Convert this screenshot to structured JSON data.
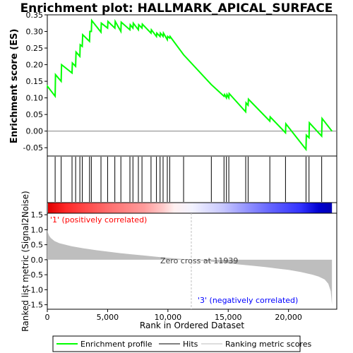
{
  "title": "Enrichment plot: HALLMARK_APICAL_SURFACE",
  "chart_data": [
    {
      "type": "line",
      "panel": "enrichment",
      "ylabel": "Enrichment score (ES)",
      "ylim": [
        -0.075,
        0.35
      ],
      "yticks": [
        -0.05,
        0.0,
        0.05,
        0.1,
        0.15,
        0.2,
        0.25,
        0.3,
        0.35
      ],
      "ytick_labels": [
        "-0.05",
        "0.00",
        "0.05",
        "0.10",
        "0.15",
        "0.20",
        "0.25",
        "0.30",
        "0.35"
      ],
      "xlim": [
        0,
        24000
      ],
      "series": [
        {
          "name": "Enrichment profile",
          "color": "#00ff00",
          "x": [
            0,
            10,
            650,
            680,
            1150,
            1180,
            2050,
            2080,
            2350,
            2380,
            2700,
            2730,
            2900,
            2930,
            3500,
            3530,
            3650,
            3680,
            4450,
            4480,
            5000,
            5030,
            5600,
            5630,
            6100,
            6130,
            6850,
            6880,
            7100,
            7130,
            7550,
            7580,
            7850,
            7880,
            8600,
            8630,
            9050,
            9080,
            9350,
            9380,
            9600,
            9630,
            9950,
            9980,
            10150,
            10180,
            11300,
            13600,
            14650,
            14700,
            14850,
            14900,
            15050,
            15080,
            16450,
            16480,
            16650,
            16680,
            18450,
            18480,
            19750,
            19780,
            21450,
            21480,
            21700,
            21730,
            22750,
            22780,
            23600
          ],
          "y": [
            0.13,
            0.135,
            0.105,
            0.17,
            0.15,
            0.2,
            0.175,
            0.205,
            0.195,
            0.238,
            0.225,
            0.26,
            0.255,
            0.29,
            0.27,
            0.3,
            0.3,
            0.333,
            0.298,
            0.325,
            0.31,
            0.33,
            0.31,
            0.33,
            0.3,
            0.328,
            0.305,
            0.32,
            0.31,
            0.325,
            0.305,
            0.32,
            0.31,
            0.322,
            0.295,
            0.305,
            0.285,
            0.295,
            0.285,
            0.295,
            0.285,
            0.295,
            0.275,
            0.285,
            0.28,
            0.285,
            0.23,
            0.14,
            0.105,
            0.11,
            0.1,
            0.11,
            0.1,
            0.113,
            0.058,
            0.085,
            0.078,
            0.096,
            0.03,
            0.043,
            -0.005,
            0.022,
            -0.055,
            -0.012,
            -0.02,
            0.025,
            -0.015,
            0.038,
            0.0
          ]
        }
      ]
    },
    {
      "type": "hits",
      "panel": "hits",
      "series_name": "Hits",
      "x": [
        650,
        1150,
        2050,
        2350,
        2700,
        2900,
        3500,
        3650,
        4450,
        5000,
        5600,
        6100,
        6850,
        7100,
        7550,
        7850,
        8600,
        9050,
        9350,
        9600,
        9950,
        10150,
        11300,
        13600,
        14650,
        14850,
        15050,
        16450,
        16650,
        18450,
        19750,
        21450,
        21700,
        22750
      ]
    },
    {
      "type": "area",
      "panel": "ranked-metric",
      "ylabel": "Ranked list metric (Signal2Noise)",
      "xlabel": "Rank in Ordered Dataset",
      "series_name": "Ranking metric scores",
      "color": "#bebebe",
      "ylim": [
        -1.65,
        1.55
      ],
      "yticks": [
        -1.5,
        -1.0,
        -0.5,
        0.0,
        0.5,
        1.0,
        1.5
      ],
      "ytick_labels": [
        "-1.5",
        "-1.0",
        "-0.5",
        "0.0",
        "0.5",
        "1.0",
        "1.5"
      ],
      "xlim": [
        0,
        24000
      ],
      "xticks": [
        0,
        5000,
        10000,
        15000,
        20000
      ],
      "xtick_labels": [
        "0",
        "5,000",
        "10,000",
        "15,000",
        "20,000"
      ],
      "x": [
        0,
        50,
        150,
        300,
        600,
        1000,
        2000,
        3000,
        4000,
        5000,
        6000,
        7000,
        8000,
        9000,
        10000,
        11000,
        11939,
        13000,
        14000,
        15000,
        16000,
        17000,
        18000,
        19000,
        20000,
        21000,
        22000,
        22500,
        23000,
        23300,
        23500,
        23600
      ],
      "y": [
        1.0,
        0.9,
        0.8,
        0.72,
        0.62,
        0.55,
        0.45,
        0.38,
        0.32,
        0.27,
        0.22,
        0.18,
        0.14,
        0.1,
        0.06,
        0.03,
        0.0,
        -0.04,
        -0.08,
        -0.12,
        -0.16,
        -0.2,
        -0.24,
        -0.29,
        -0.34,
        -0.41,
        -0.5,
        -0.56,
        -0.66,
        -0.8,
        -1.05,
        -1.5
      ]
    }
  ],
  "annotations": {
    "positive_label": "'1' (positively correlated)",
    "positive_color": "#ff0000",
    "negative_label": "'3' (negatively correlated)",
    "negative_color": "#0000ff",
    "zero_cross_label": "Zero cross at 11939",
    "zero_cross_rank": 11939
  },
  "legend": {
    "placement": "bottom",
    "items": [
      {
        "label": "Enrichment profile",
        "color": "#00ff00"
      },
      {
        "label": "Hits",
        "color": "#000000"
      },
      {
        "label": "Ranking metric scores",
        "color": "#bebebe"
      }
    ]
  },
  "colorbar": {
    "stops": [
      {
        "rank": 0,
        "color": "#e00000"
      },
      {
        "rank": 1500,
        "color": "#ff2828"
      },
      {
        "rank": 5000,
        "color": "#ff6e6e"
      },
      {
        "rank": 8000,
        "color": "#ff9c9c"
      },
      {
        "rank": 9500,
        "color": "#ffc8c8"
      },
      {
        "rank": 10500,
        "color": "#fff0f0"
      },
      {
        "rank": 12000,
        "color": "#f2f2ff"
      },
      {
        "rank": 14500,
        "color": "#c8c8ff"
      },
      {
        "rank": 16500,
        "color": "#9494ff"
      },
      {
        "rank": 18500,
        "color": "#6464ff"
      },
      {
        "rank": 21000,
        "color": "#3232ff"
      },
      {
        "rank": 22500,
        "color": "#0000d0"
      },
      {
        "rank": 23600,
        "color": "#0000b4"
      }
    ]
  }
}
